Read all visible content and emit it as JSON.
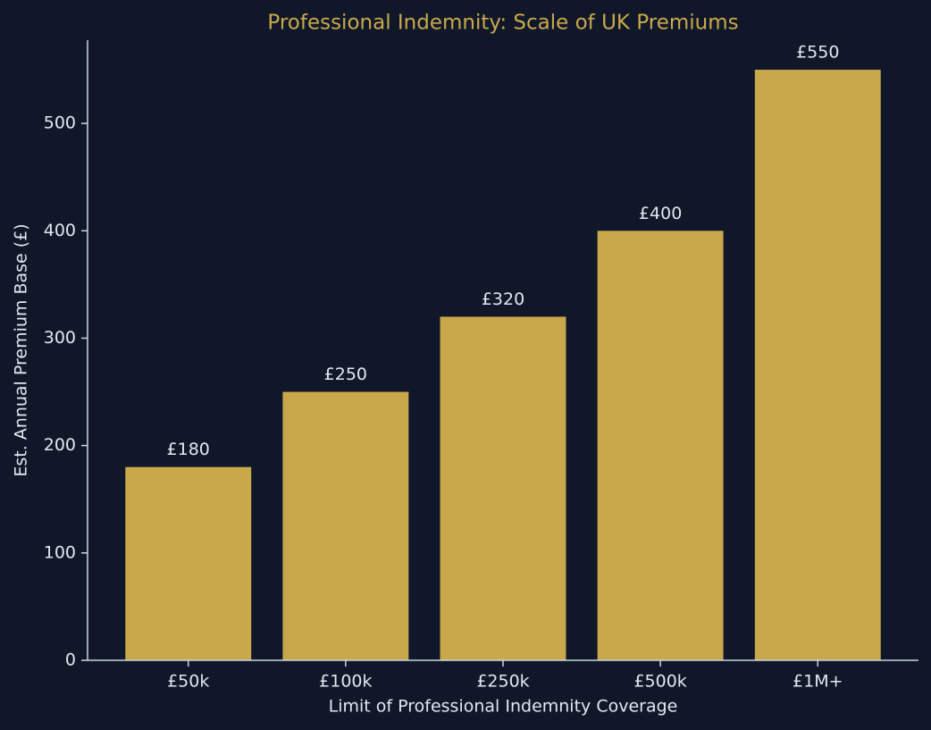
{
  "chart_data": {
    "type": "bar",
    "title": "Professional Indemnity: Scale of UK Premiums",
    "x_label": "Limit of Professional Indemnity Coverage",
    "y_label": "Est. Annual Premium Base (£)",
    "categories": [
      "£50k",
      "£100k",
      "£250k",
      "£500k",
      "£1M+"
    ],
    "values": [
      180,
      250,
      320,
      400,
      550
    ],
    "value_labels": [
      "£180",
      "£250",
      "£320",
      "£400",
      "£550"
    ],
    "color": "#c9a84c",
    "ylim": [
      0,
      577.5
    ],
    "yticks": [
      0,
      100,
      200,
      300,
      400,
      500
    ],
    "grid": false
  }
}
